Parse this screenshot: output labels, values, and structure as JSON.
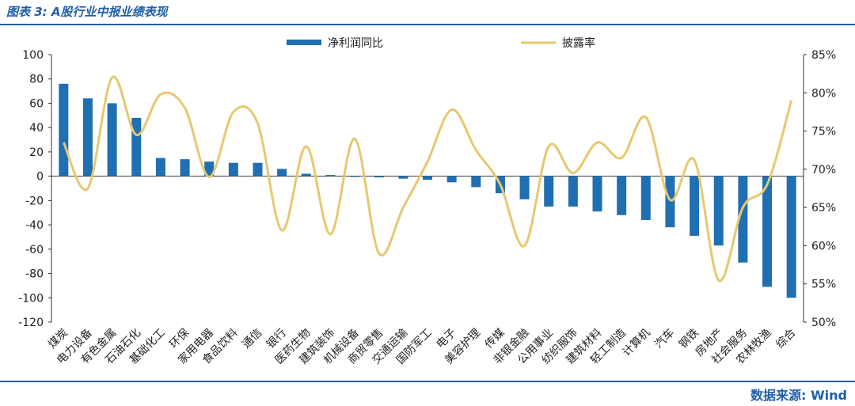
{
  "header": {
    "title": "图表 3: A股行业中报业绩表现"
  },
  "footer": {
    "source": "数据来源: Wind"
  },
  "chart_data": {
    "type": "bar",
    "categories": [
      "煤炭",
      "电力设备",
      "有色金属",
      "石油石化",
      "基础化工",
      "环保",
      "家用电器",
      "食品饮料",
      "通信",
      "银行",
      "医药生物",
      "建筑装饰",
      "机械设备",
      "商贸零售",
      "交通运输",
      "国防军工",
      "电子",
      "美容护理",
      "传媒",
      "非银金融",
      "公用事业",
      "纺织服饰",
      "建筑材料",
      "轻工制造",
      "计算机",
      "汽车",
      "钢铁",
      "房地产",
      "社会服务",
      "农林牧渔",
      "综合"
    ],
    "series": [
      {
        "name": "净利润同比",
        "type": "bar",
        "axis": "left",
        "color": "#1f6fb2",
        "values": [
          76,
          64,
          60,
          48,
          15,
          14,
          12,
          11,
          11,
          6,
          2,
          1,
          0,
          -1,
          -2,
          -3,
          -5,
          -9,
          -14,
          -19,
          -25,
          -25,
          -29,
          -32,
          -36,
          -42,
          -49,
          -57,
          -71,
          -91,
          -100
        ]
      },
      {
        "name": "披露率",
        "type": "line",
        "axis": "right",
        "color": "#e6c86e",
        "values": [
          73.5,
          67.5,
          82.0,
          74.5,
          79.8,
          78.0,
          69.0,
          77.5,
          76.0,
          62.0,
          73.0,
          61.5,
          74.0,
          59.0,
          65.0,
          71.0,
          77.8,
          72.5,
          68.0,
          60.0,
          73.0,
          69.5,
          73.5,
          71.5,
          76.8,
          66.0,
          71.2,
          55.5,
          65.0,
          68.0,
          79.0
        ]
      }
    ],
    "y_left": {
      "ticks": [
        "100",
        "80",
        "60",
        "40",
        "20",
        "0",
        "-20",
        "-40",
        "-60",
        "-80",
        "-100",
        "-120"
      ],
      "min": -120,
      "max": 100,
      "step": 20
    },
    "y_right": {
      "ticks": [
        "85%",
        "80%",
        "75%",
        "70%",
        "65%",
        "60%",
        "55%",
        "50%"
      ],
      "min": 50,
      "max": 85,
      "step": 5
    },
    "legend_position": "top-center",
    "grid": false
  }
}
